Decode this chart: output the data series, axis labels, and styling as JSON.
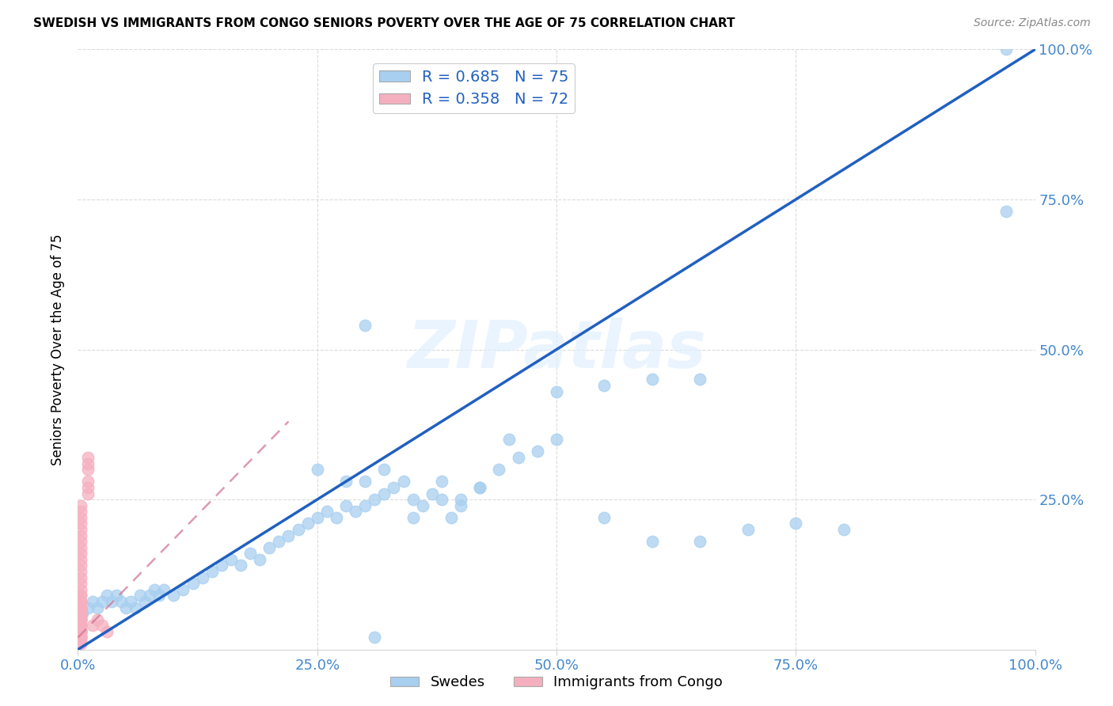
{
  "title": "SWEDISH VS IMMIGRANTS FROM CONGO SENIORS POVERTY OVER THE AGE OF 75 CORRELATION CHART",
  "source": "Source: ZipAtlas.com",
  "ylabel": "Seniors Poverty Over the Age of 75",
  "xlim": [
    0.0,
    1.0
  ],
  "ylim": [
    0.0,
    1.0
  ],
  "xticks": [
    0.0,
    0.25,
    0.5,
    0.75,
    1.0
  ],
  "yticks": [
    0.25,
    0.5,
    0.75,
    1.0
  ],
  "xtick_labels": [
    "0.0%",
    "25.0%",
    "50.0%",
    "75.0%",
    "100.0%"
  ],
  "ytick_labels_right": [
    "25.0%",
    "50.0%",
    "75.0%",
    "100.0%"
  ],
  "blue_R": 0.685,
  "blue_N": 75,
  "pink_R": 0.358,
  "pink_N": 72,
  "blue_color": "#A8CFF0",
  "pink_color": "#F5B0C0",
  "blue_line_color": "#2060C0",
  "pink_line_color": "#D07090",
  "tick_color": "#4488CC",
  "watermark": "ZIPatlas",
  "legend_labels": [
    "Swedes",
    "Immigrants from Congo"
  ],
  "blue_scatter_x": [
    0.005,
    0.01,
    0.015,
    0.02,
    0.025,
    0.03,
    0.035,
    0.04,
    0.045,
    0.05,
    0.055,
    0.06,
    0.065,
    0.07,
    0.075,
    0.08,
    0.085,
    0.09,
    0.1,
    0.11,
    0.12,
    0.13,
    0.14,
    0.15,
    0.16,
    0.17,
    0.18,
    0.19,
    0.2,
    0.21,
    0.22,
    0.23,
    0.24,
    0.25,
    0.26,
    0.27,
    0.28,
    0.29,
    0.3,
    0.31,
    0.32,
    0.33,
    0.34,
    0.35,
    0.36,
    0.37,
    0.38,
    0.39,
    0.4,
    0.42,
    0.44,
    0.46,
    0.48,
    0.5,
    0.55,
    0.6,
    0.65,
    0.7,
    0.75,
    0.8,
    0.3,
    0.25,
    0.28,
    0.32,
    0.35,
    0.38,
    0.4,
    0.42,
    0.45,
    0.5,
    0.55,
    0.6,
    0.65,
    0.97,
    0.97
  ],
  "blue_scatter_y": [
    0.06,
    0.07,
    0.08,
    0.07,
    0.08,
    0.09,
    0.08,
    0.09,
    0.08,
    0.07,
    0.08,
    0.07,
    0.09,
    0.08,
    0.09,
    0.1,
    0.09,
    0.1,
    0.09,
    0.1,
    0.11,
    0.12,
    0.13,
    0.14,
    0.15,
    0.14,
    0.16,
    0.15,
    0.17,
    0.18,
    0.19,
    0.2,
    0.21,
    0.22,
    0.23,
    0.22,
    0.24,
    0.23,
    0.24,
    0.25,
    0.26,
    0.27,
    0.28,
    0.22,
    0.24,
    0.26,
    0.28,
    0.22,
    0.25,
    0.27,
    0.3,
    0.32,
    0.33,
    0.35,
    0.22,
    0.18,
    0.18,
    0.2,
    0.21,
    0.2,
    0.28,
    0.3,
    0.28,
    0.3,
    0.25,
    0.25,
    0.24,
    0.27,
    0.35,
    0.43,
    0.44,
    0.45,
    0.45,
    1.0,
    0.73
  ],
  "blue_extra_x": [
    0.3
  ],
  "blue_extra_y": [
    0.54
  ],
  "blue_outlier_x": [
    0.31
  ],
  "blue_outlier_y": [
    0.02
  ],
  "pink_scatter_x": [
    0.003,
    0.003,
    0.003,
    0.003,
    0.003,
    0.003,
    0.003,
    0.003,
    0.003,
    0.003,
    0.003,
    0.003,
    0.003,
    0.003,
    0.003,
    0.003,
    0.003,
    0.003,
    0.003,
    0.003,
    0.003,
    0.003,
    0.003,
    0.003,
    0.003,
    0.003,
    0.003,
    0.003,
    0.003,
    0.003,
    0.003,
    0.003,
    0.003,
    0.003,
    0.003,
    0.003,
    0.003,
    0.003,
    0.003,
    0.003,
    0.003,
    0.003,
    0.003,
    0.003,
    0.003,
    0.003,
    0.003,
    0.003,
    0.003,
    0.003,
    0.01,
    0.01,
    0.01,
    0.01,
    0.01,
    0.01,
    0.015,
    0.02,
    0.025,
    0.03,
    0.003,
    0.003,
    0.003,
    0.003,
    0.003,
    0.003,
    0.003,
    0.003,
    0.003,
    0.003,
    0.003,
    0.003
  ],
  "pink_scatter_y": [
    0.05,
    0.06,
    0.07,
    0.08,
    0.09,
    0.1,
    0.11,
    0.12,
    0.13,
    0.14,
    0.15,
    0.16,
    0.17,
    0.18,
    0.19,
    0.2,
    0.21,
    0.22,
    0.23,
    0.24,
    0.04,
    0.03,
    0.04,
    0.05,
    0.06,
    0.07,
    0.08,
    0.03,
    0.04,
    0.05,
    0.06,
    0.07,
    0.03,
    0.04,
    0.05,
    0.06,
    0.02,
    0.03,
    0.04,
    0.05,
    0.06,
    0.07,
    0.02,
    0.03,
    0.04,
    0.05,
    0.06,
    0.07,
    0.08,
    0.09,
    0.26,
    0.27,
    0.28,
    0.3,
    0.31,
    0.32,
    0.04,
    0.05,
    0.04,
    0.03,
    0.015,
    0.025,
    0.035,
    0.01,
    0.02,
    0.03,
    0.04,
    0.012,
    0.022,
    0.032,
    0.042,
    0.052
  ],
  "blue_line_x": [
    0.0,
    1.0
  ],
  "blue_line_y": [
    0.0,
    1.0
  ],
  "pink_line_x": [
    0.0,
    0.22
  ],
  "pink_line_y": [
    0.02,
    0.38
  ]
}
